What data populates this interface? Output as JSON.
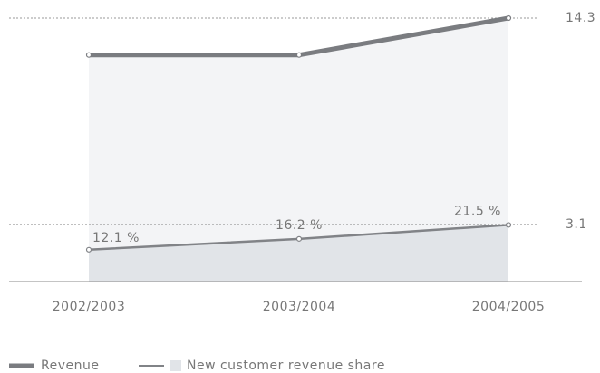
{
  "chart_data": {
    "type": "line",
    "categories": [
      "2002/2003",
      "2003/2004",
      "2004/2005"
    ],
    "series": [
      {
        "name": "Revenue",
        "color": "#7a7c80",
        "fill": "#f3f4f6",
        "values": [
          12.3,
          12.3,
          14.3
        ]
      },
      {
        "name": "New customer revenue share",
        "color": "#818387",
        "fill": "#e1e4e8",
        "axis": "y2",
        "values": [
          12.1,
          16.2,
          21.5
        ],
        "value_labels": [
          "12.1 %",
          "16.2 %",
          "21.5 %"
        ]
      }
    ],
    "ylim": [
      0,
      14.3
    ],
    "yticks": [
      14.3,
      3.1
    ],
    "y2lim": [
      0,
      100
    ],
    "grid": true,
    "legend": "bottom-left"
  }
}
